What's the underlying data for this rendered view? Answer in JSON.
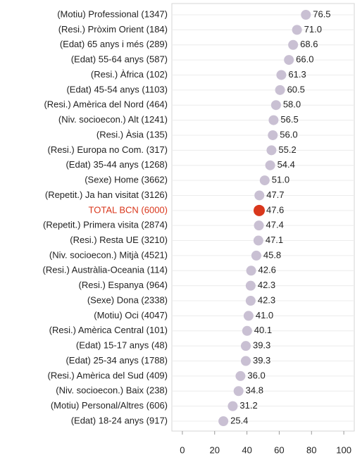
{
  "chart_data": {
    "type": "dot",
    "categories": [
      "(Motiu) Professional (1347)",
      "(Resi.) Pròxim Orient (184)",
      "(Edat) 65 anys i més (289)",
      "(Edat) 55-64 anys (587)",
      "(Resi.) Àfrica (102)",
      "(Edat) 45-54 anys (1103)",
      "(Resi.) Amèrica del Nord (464)",
      "(Niv. socioecon.) Alt (1241)",
      "(Resi.) Àsia (135)",
      "(Resi.) Europa no Com. (317)",
      "(Edat) 35-44 anys (1268)",
      "(Sexe) Home (3662)",
      "(Repetit.) Ja han visitat (3126)",
      "TOTAL BCN (6000)",
      "(Repetit.) Primera visita (2874)",
      "(Resi.) Resta UE (3210)",
      "(Niv. socioecon.) Mitjà (4521)",
      "(Resi.) Austràlia-Oceania (114)",
      "(Resi.) Espanya (964)",
      "(Sexe) Dona (2338)",
      "(Motiu) Oci (4047)",
      "(Resi.) Amèrica Central (101)",
      "(Edat) 15-17 anys (48)",
      "(Edat) 25-34 anys (1788)",
      "(Resi.) Amèrica del Sud (409)",
      "(Niv. socioecon.) Baix (238)",
      "(Motiu) Personal/Altres (606)",
      "(Edat) 18-24 anys (917)"
    ],
    "values": [
      76.5,
      71.0,
      68.6,
      66.0,
      61.3,
      60.5,
      58.0,
      56.5,
      56.0,
      55.2,
      54.4,
      51.0,
      47.7,
      47.6,
      47.4,
      47.1,
      45.8,
      42.6,
      42.3,
      42.3,
      41.0,
      40.1,
      39.3,
      39.3,
      36.0,
      34.8,
      31.2,
      25.4
    ],
    "value_labels": [
      "76.5",
      "71.0",
      "68.6",
      "66.0",
      "61.3",
      "60.5",
      "58.0",
      "56.5",
      "56.0",
      "55.2",
      "54.4",
      "51.0",
      "47.7",
      "47.6",
      "47.4",
      "47.1",
      "45.8",
      "42.6",
      "42.3",
      "42.3",
      "41.0",
      "40.1",
      "39.3",
      "39.3",
      "36.0",
      "34.8",
      "31.2",
      "25.4"
    ],
    "colors": [
      "#c9c0d3",
      "#c9c0d3",
      "#c9c0d3",
      "#c9c0d3",
      "#c9c0d3",
      "#c9c0d3",
      "#c9c0d3",
      "#c9c0d3",
      "#c9c0d3",
      "#c9c0d3",
      "#c9c0d3",
      "#c9c0d3",
      "#c9c0d3",
      "#d9371c",
      "#c9c0d3",
      "#c9c0d3",
      "#c9c0d3",
      "#c9c0d3",
      "#c9c0d3",
      "#c9c0d3",
      "#c9c0d3",
      "#c9c0d3",
      "#c9c0d3",
      "#c9c0d3",
      "#c9c0d3",
      "#c9c0d3",
      "#c9c0d3",
      "#c9c0d3"
    ],
    "xlim": [
      -6.5,
      106.5
    ],
    "xticks": [
      0,
      20,
      40,
      60,
      80,
      100
    ],
    "grid": true
  }
}
